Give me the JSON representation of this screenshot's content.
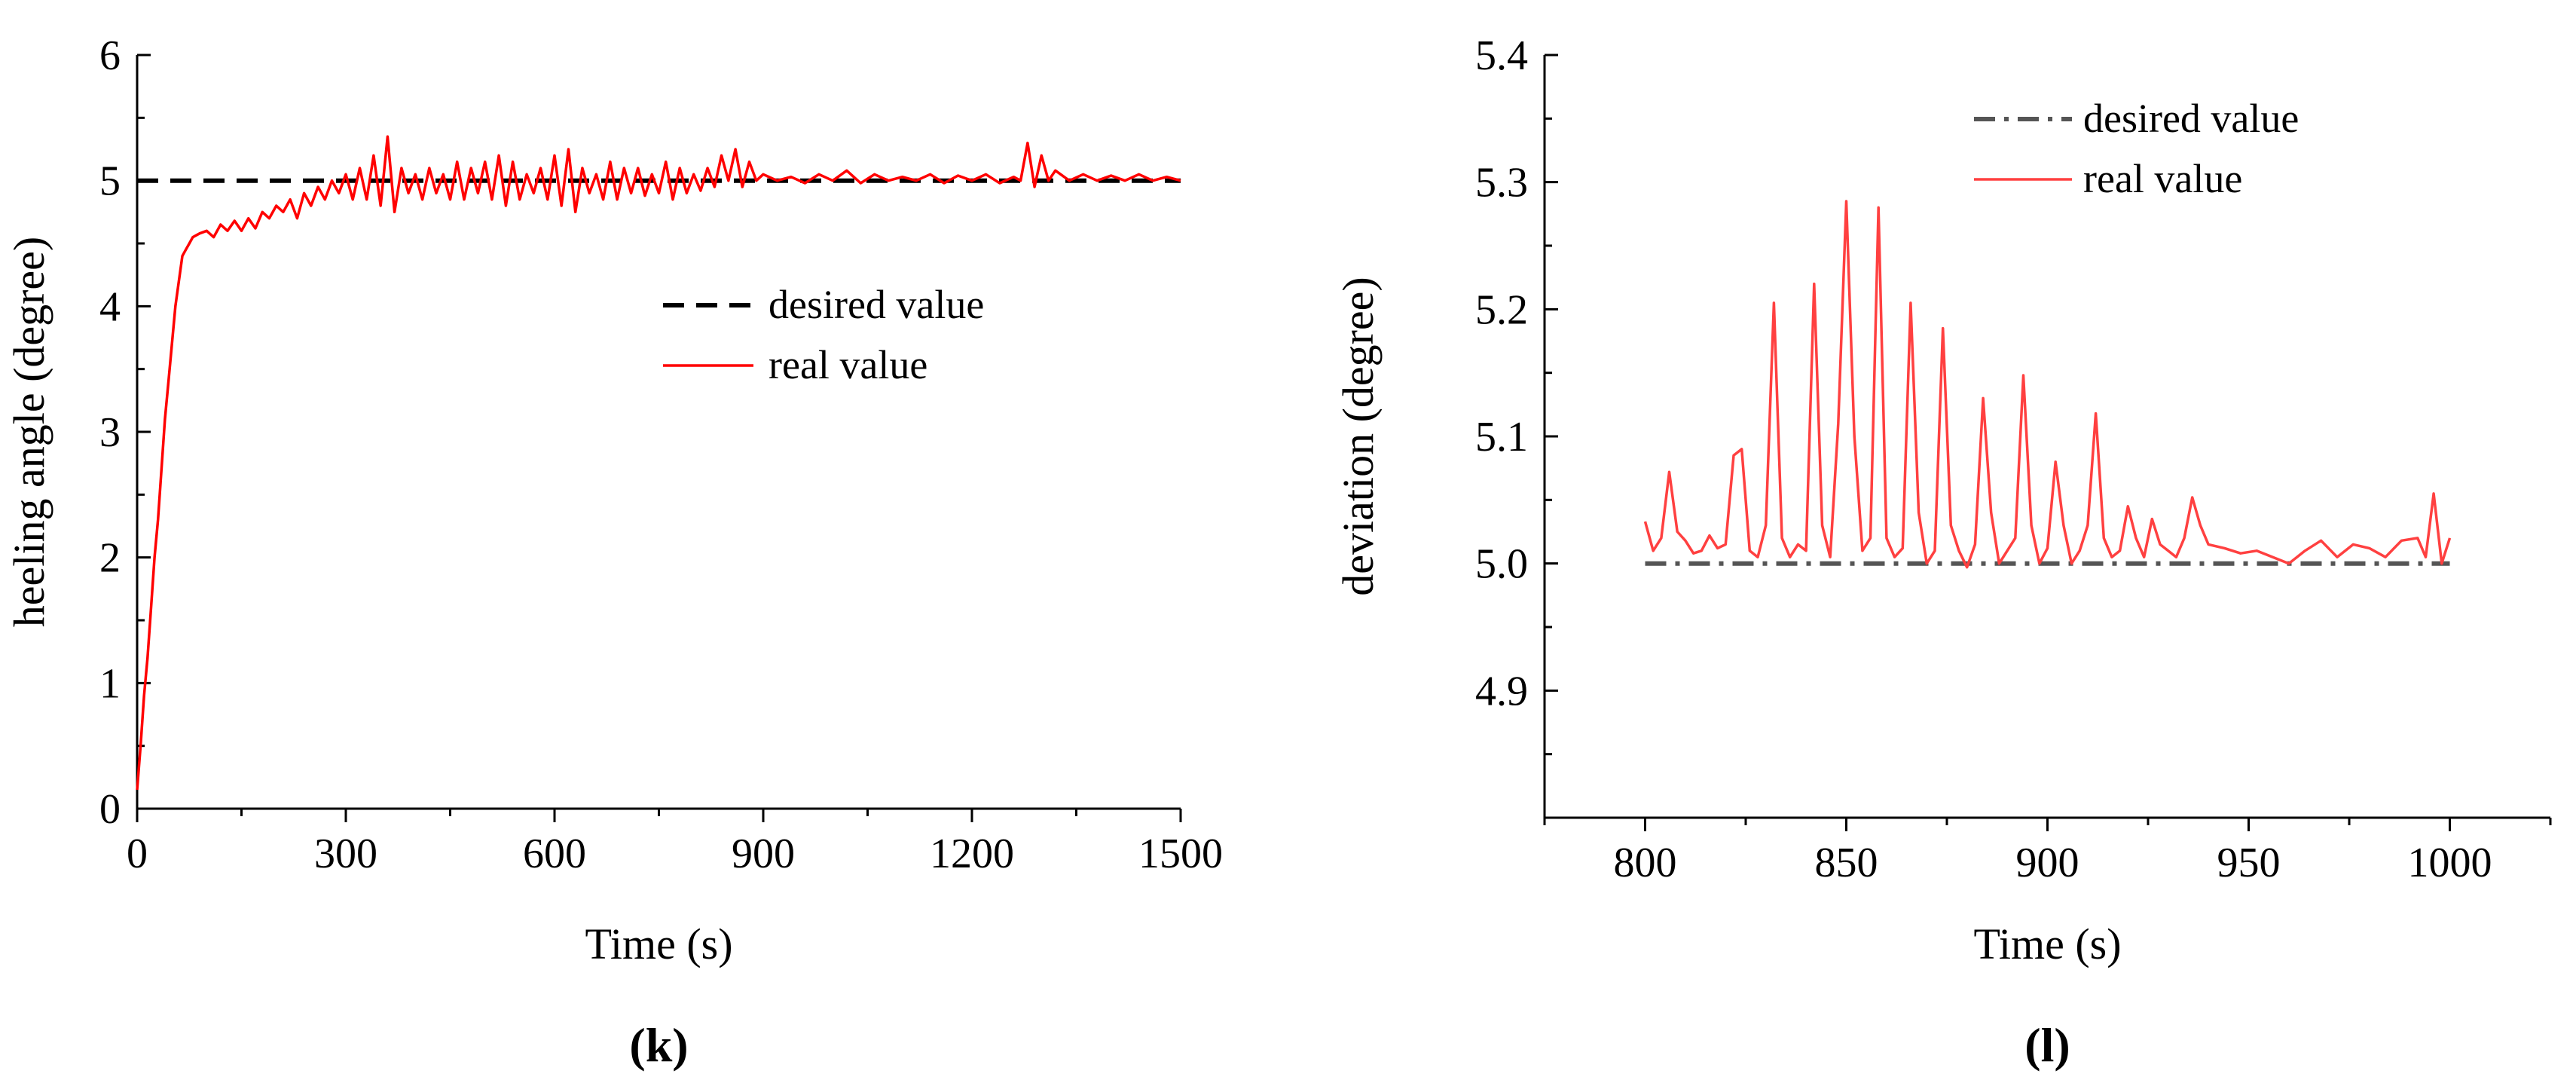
{
  "chart_data": [
    {
      "type": "line",
      "panel_label": "(k)",
      "title": "",
      "xlabel": "Time (s)",
      "ylabel": "heeling angle (degree)",
      "xlim": [
        0,
        1500
      ],
      "ylim": [
        0,
        6
      ],
      "x_ticks": [
        0,
        300,
        600,
        900,
        1200,
        1500
      ],
      "x_tick_labels": [
        "0",
        "300",
        "600",
        "900",
        "1200",
        "1500"
      ],
      "y_ticks": [
        0,
        1,
        2,
        3,
        4,
        5,
        6
      ],
      "y_tick_labels": [
        "0",
        "1",
        "2",
        "3",
        "4",
        "5",
        "6"
      ],
      "grid": false,
      "legend_position": "center-right",
      "legend": [
        "desired value",
        "real value"
      ],
      "series": [
        {
          "name": "desired value",
          "color": "#000000",
          "style": "dashed",
          "x": [
            0,
            1500
          ],
          "y": [
            5,
            5
          ]
        },
        {
          "name": "real value",
          "color": "#ff0000",
          "style": "solid",
          "x": [
            0,
            5,
            10,
            15,
            20,
            25,
            30,
            35,
            40,
            45,
            50,
            55,
            60,
            65,
            70,
            75,
            80,
            90,
            100,
            110,
            120,
            130,
            140,
            150,
            160,
            170,
            180,
            190,
            200,
            210,
            220,
            230,
            240,
            250,
            260,
            270,
            280,
            290,
            300,
            310,
            320,
            330,
            340,
            350,
            360,
            370,
            380,
            390,
            400,
            410,
            420,
            430,
            440,
            450,
            460,
            470,
            480,
            490,
            500,
            510,
            520,
            530,
            540,
            550,
            560,
            570,
            580,
            590,
            600,
            610,
            620,
            630,
            640,
            650,
            660,
            670,
            680,
            690,
            700,
            710,
            720,
            730,
            740,
            750,
            760,
            770,
            780,
            790,
            800,
            810,
            820,
            830,
            840,
            850,
            860,
            870,
            880,
            890,
            900,
            920,
            940,
            960,
            980,
            1000,
            1020,
            1040,
            1060,
            1080,
            1100,
            1120,
            1140,
            1160,
            1180,
            1200,
            1220,
            1240,
            1260,
            1270,
            1280,
            1290,
            1300,
            1310,
            1320,
            1340,
            1360,
            1380,
            1400,
            1420,
            1440,
            1460,
            1480,
            1500
          ],
          "y": [
            0.15,
            0.5,
            0.9,
            1.2,
            1.6,
            2.0,
            2.3,
            2.7,
            3.1,
            3.4,
            3.7,
            4.0,
            4.2,
            4.4,
            4.45,
            4.5,
            4.55,
            4.58,
            4.6,
            4.55,
            4.65,
            4.6,
            4.68,
            4.6,
            4.7,
            4.62,
            4.75,
            4.7,
            4.8,
            4.75,
            4.85,
            4.7,
            4.9,
            4.8,
            4.95,
            4.85,
            5.0,
            4.9,
            5.05,
            4.85,
            5.1,
            4.85,
            5.2,
            4.8,
            5.35,
            4.75,
            5.1,
            4.9,
            5.05,
            4.85,
            5.1,
            4.9,
            5.05,
            4.85,
            5.15,
            4.85,
            5.1,
            4.9,
            5.15,
            4.85,
            5.2,
            4.8,
            5.15,
            4.85,
            5.05,
            4.9,
            5.1,
            4.85,
            5.2,
            4.8,
            5.25,
            4.75,
            5.1,
            4.9,
            5.05,
            4.85,
            5.15,
            4.85,
            5.1,
            4.9,
            5.1,
            4.88,
            5.05,
            4.9,
            5.15,
            4.85,
            5.1,
            4.9,
            5.05,
            4.92,
            5.1,
            4.95,
            5.2,
            5.0,
            5.25,
            4.95,
            5.15,
            5.0,
            5.05,
            5.0,
            5.03,
            4.98,
            5.05,
            5.0,
            5.08,
            4.98,
            5.05,
            5.0,
            5.03,
            5.0,
            5.05,
            4.98,
            5.04,
            5.0,
            5.05,
            4.98,
            5.03,
            5.0,
            5.3,
            4.95,
            5.2,
            5.0,
            5.08,
            5.0,
            5.05,
            5.0,
            5.04,
            5.0,
            5.05,
            5.0,
            5.03,
            5.0
          ]
        }
      ]
    },
    {
      "type": "line",
      "panel_label": "(l)",
      "title": "",
      "xlabel": "Time (s)",
      "ylabel": "deviation  (degree)",
      "xlim": [
        775,
        1025
      ],
      "ylim": [
        4.8,
        5.4
      ],
      "x_ticks": [
        800,
        850,
        900,
        950,
        1000
      ],
      "x_tick_labels": [
        "800",
        "850",
        "900",
        "950",
        "1000"
      ],
      "y_ticks": [
        4.9,
        5.0,
        5.1,
        5.2,
        5.3,
        5.4
      ],
      "y_tick_labels": [
        "4.9",
        "5.0",
        "5.1",
        "5.2",
        "5.3",
        "5.4"
      ],
      "grid": false,
      "legend_position": "top-center",
      "legend": [
        "desired value",
        "real value"
      ],
      "series": [
        {
          "name": "desired value",
          "color": "#555555",
          "style": "dash-dot",
          "x": [
            800,
            1000
          ],
          "y": [
            5.0,
            5.0
          ]
        },
        {
          "name": "real value",
          "color": "#ff4040",
          "style": "solid",
          "x": [
            800,
            802,
            804,
            806,
            808,
            810,
            812,
            814,
            816,
            818,
            820,
            822,
            824,
            826,
            828,
            830,
            832,
            834,
            836,
            838,
            840,
            842,
            844,
            846,
            848,
            850,
            852,
            854,
            856,
            858,
            860,
            862,
            864,
            866,
            868,
            870,
            872,
            874,
            876,
            878,
            880,
            882,
            884,
            886,
            888,
            890,
            892,
            894,
            896,
            898,
            900,
            902,
            904,
            906,
            908,
            910,
            912,
            914,
            916,
            918,
            920,
            922,
            924,
            926,
            928,
            930,
            932,
            934,
            936,
            938,
            940,
            944,
            948,
            952,
            956,
            960,
            964,
            968,
            972,
            976,
            980,
            984,
            988,
            992,
            994,
            996,
            998,
            1000
          ],
          "y": [
            5.033,
            5.01,
            5.02,
            5.072,
            5.025,
            5.018,
            5.008,
            5.01,
            5.022,
            5.012,
            5.015,
            5.085,
            5.09,
            5.01,
            5.005,
            5.03,
            5.205,
            5.02,
            5.005,
            5.015,
            5.01,
            5.22,
            5.03,
            5.005,
            5.11,
            5.285,
            5.1,
            5.01,
            5.02,
            5.28,
            5.02,
            5.005,
            5.012,
            5.205,
            5.04,
            5.0,
            5.01,
            5.185,
            5.03,
            5.01,
            4.997,
            5.015,
            5.13,
            5.04,
            5.0,
            5.01,
            5.02,
            5.148,
            5.03,
            5.0,
            5.012,
            5.08,
            5.03,
            5.0,
            5.01,
            5.03,
            5.118,
            5.02,
            5.005,
            5.01,
            5.045,
            5.02,
            5.005,
            5.035,
            5.015,
            5.01,
            5.005,
            5.02,
            5.052,
            5.03,
            5.015,
            5.012,
            5.008,
            5.01,
            5.005,
            5.0,
            5.01,
            5.018,
            5.005,
            5.015,
            5.012,
            5.005,
            5.018,
            5.02,
            5.005,
            5.055,
            5.0,
            5.02
          ]
        }
      ]
    }
  ]
}
